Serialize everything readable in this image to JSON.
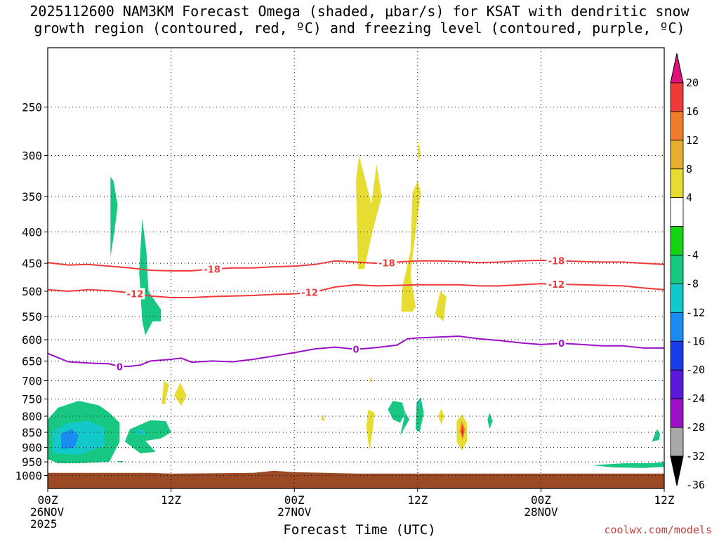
{
  "title": {
    "line1": "2025112600 NAM3KM Forecast Omega (shaded, μbar/s) for KSAT with dendritic snow",
    "line2": "growth region (contoured, red, ºC) and freezing level (contoured, purple, ºC)"
  },
  "credit": "coolwx.com/models",
  "chart_data": {
    "type": "time-height",
    "xlabel": "Forecast Time (UTC)",
    "ylabel": "",
    "x_hours_range": [
      0,
      60
    ],
    "y_scale": "log-pressure",
    "y_range_hPa": [
      1050,
      200
    ],
    "y_ticks": [
      250,
      300,
      350,
      400,
      450,
      500,
      550,
      600,
      650,
      700,
      750,
      800,
      850,
      900,
      950,
      1000
    ],
    "x_ticks": [
      {
        "hour": 0,
        "lines": [
          "00Z",
          "26NOV",
          "2025"
        ]
      },
      {
        "hour": 12,
        "lines": [
          "12Z"
        ]
      },
      {
        "hour": 24,
        "lines": [
          "00Z",
          "27NOV"
        ]
      },
      {
        "hour": 36,
        "lines": [
          "12Z"
        ]
      },
      {
        "hour": 48,
        "lines": [
          "00Z",
          "28NOV"
        ]
      },
      {
        "hour": 60,
        "lines": [
          "12Z"
        ]
      }
    ],
    "grid": true,
    "colorbar": {
      "unit": "μbar/s",
      "labels": [
        20,
        16,
        12,
        8,
        4,
        -4,
        -8,
        -12,
        -16,
        -20,
        -24,
        -28,
        -32,
        -36
      ],
      "bins": [
        {
          "lo": 20,
          "hi": null,
          "color": "#e0107a"
        },
        {
          "lo": 16,
          "hi": 20,
          "color": "#ef3a3a"
        },
        {
          "lo": 12,
          "hi": 16,
          "color": "#f07c2c"
        },
        {
          "lo": 8,
          "hi": 12,
          "color": "#e8ae30"
        },
        {
          "lo": 4,
          "hi": 8,
          "color": "#e6dc32"
        },
        {
          "lo": -4,
          "hi": 4,
          "color": "#ffffff"
        },
        {
          "lo": -8,
          "hi": -4,
          "color": "#14d414"
        },
        {
          "lo": -12,
          "hi": -8,
          "color": "#18c882"
        },
        {
          "lo": -16,
          "hi": -12,
          "color": "#12c8c8"
        },
        {
          "lo": -20,
          "hi": -16,
          "color": "#1a8cf0"
        },
        {
          "lo": -24,
          "hi": -20,
          "color": "#1a3ce6"
        },
        {
          "lo": -28,
          "hi": -24,
          "color": "#5a18d8"
        },
        {
          "lo": -32,
          "hi": -28,
          "color": "#9c10c8"
        },
        {
          "lo": -36,
          "hi": -32,
          "color": "#a8a8a8"
        },
        {
          "lo": null,
          "hi": -36,
          "color": "#000000"
        }
      ]
    },
    "contours": [
      {
        "level": -18,
        "label": "-18",
        "color": "#ee3a3a",
        "points": [
          [
            0,
            449
          ],
          [
            2,
            453
          ],
          [
            4,
            452
          ],
          [
            6,
            455
          ],
          [
            8,
            458
          ],
          [
            10,
            462
          ],
          [
            12,
            463
          ],
          [
            14,
            463
          ],
          [
            16,
            460
          ],
          [
            18,
            458
          ],
          [
            20,
            458
          ],
          [
            22,
            456
          ],
          [
            24,
            455
          ],
          [
            26,
            452
          ],
          [
            28,
            446
          ],
          [
            30,
            448
          ],
          [
            32,
            450
          ],
          [
            34,
            448
          ],
          [
            36,
            446
          ],
          [
            38,
            446
          ],
          [
            40,
            447
          ],
          [
            42,
            449
          ],
          [
            44,
            448
          ],
          [
            46,
            446
          ],
          [
            48,
            445
          ],
          [
            50,
            446
          ],
          [
            52,
            447
          ],
          [
            54,
            448
          ],
          [
            56,
            448
          ],
          [
            58,
            450
          ],
          [
            60,
            452
          ]
        ],
        "label_hours": [
          16,
          33,
          49.5
        ]
      },
      {
        "level": -12,
        "label": "-12",
        "color": "#ee3a3a",
        "points": [
          [
            0,
            497
          ],
          [
            2,
            500
          ],
          [
            4,
            497
          ],
          [
            6,
            499
          ],
          [
            8,
            503
          ],
          [
            10,
            509
          ],
          [
            12,
            512
          ],
          [
            14,
            512
          ],
          [
            16,
            510
          ],
          [
            18,
            509
          ],
          [
            20,
            508
          ],
          [
            22,
            506
          ],
          [
            24,
            505
          ],
          [
            26,
            501
          ],
          [
            28,
            492
          ],
          [
            30,
            488
          ],
          [
            32,
            490
          ],
          [
            34,
            489
          ],
          [
            36,
            488
          ],
          [
            38,
            488
          ],
          [
            40,
            488
          ],
          [
            42,
            490
          ],
          [
            44,
            490
          ],
          [
            46,
            488
          ],
          [
            48,
            486
          ],
          [
            50,
            487
          ],
          [
            52,
            488
          ],
          [
            54,
            489
          ],
          [
            56,
            490
          ],
          [
            58,
            494
          ],
          [
            60,
            497
          ]
        ],
        "label_hours": [
          8.5,
          25.5,
          49.5
        ]
      },
      {
        "level": 0,
        "label": "0",
        "color": "#9c10c8",
        "points": [
          [
            0,
            632
          ],
          [
            2,
            652
          ],
          [
            4,
            655
          ],
          [
            6,
            657
          ],
          [
            7,
            664
          ],
          [
            8,
            663
          ],
          [
            9,
            660
          ],
          [
            10,
            650
          ],
          [
            12,
            646
          ],
          [
            13,
            643
          ],
          [
            14,
            653
          ],
          [
            16,
            650
          ],
          [
            18,
            652
          ],
          [
            20,
            646
          ],
          [
            22,
            638
          ],
          [
            24,
            630
          ],
          [
            26,
            621
          ],
          [
            28,
            617
          ],
          [
            30,
            622
          ],
          [
            32,
            618
          ],
          [
            34,
            612
          ],
          [
            35,
            598
          ],
          [
            36,
            596
          ],
          [
            38,
            594
          ],
          [
            40,
            592
          ],
          [
            42,
            598
          ],
          [
            44,
            602
          ],
          [
            46,
            607
          ],
          [
            48,
            611
          ],
          [
            50,
            608
          ],
          [
            52,
            611
          ],
          [
            54,
            614
          ],
          [
            56,
            614
          ],
          [
            58,
            619
          ],
          [
            60,
            619
          ]
        ],
        "label_hours": [
          7,
          30,
          50
        ]
      }
    ],
    "omega_regions": [
      {
        "bin": -8,
        "pts": [
          [
            0,
            940
          ],
          [
            0,
            810
          ],
          [
            1,
            775
          ],
          [
            3,
            755
          ],
          [
            5,
            768
          ],
          [
            6,
            790
          ],
          [
            7,
            820
          ],
          [
            7,
            880
          ],
          [
            6,
            950
          ],
          [
            3,
            955
          ],
          [
            1,
            955
          ]
        ]
      },
      {
        "bin": -12,
        "pts": [
          [
            0.5,
            920
          ],
          [
            0.5,
            845
          ],
          [
            2,
            820
          ],
          [
            4,
            815
          ],
          [
            5.5,
            835
          ],
          [
            5.5,
            895
          ],
          [
            3,
            925
          ]
        ]
      },
      {
        "bin": -16,
        "pts": [
          [
            1.3,
            905
          ],
          [
            1.3,
            855
          ],
          [
            2.3,
            840
          ],
          [
            3,
            860
          ],
          [
            2.6,
            900
          ]
        ]
      },
      {
        "bin": -8,
        "pts": [
          [
            7.5,
            880
          ],
          [
            8,
            840
          ],
          [
            10,
            812
          ],
          [
            11.5,
            815
          ],
          [
            12,
            850
          ],
          [
            11,
            870
          ],
          [
            9.5,
            878
          ],
          [
            10.5,
            915
          ],
          [
            9,
            920
          ]
        ]
      },
      {
        "bin": -12,
        "pts": [
          [
            8.5,
            855
          ],
          [
            8.8,
            840
          ],
          [
            9.5,
            845
          ],
          [
            9.5,
            857
          ]
        ]
      },
      {
        "bin": -8,
        "pts": [
          [
            6.1,
            440
          ],
          [
            6.1,
            325
          ],
          [
            6.4,
            330
          ],
          [
            6.8,
            362
          ],
          [
            6.5,
            398
          ]
        ]
      },
      {
        "bin": -8,
        "pts": [
          [
            8.9,
            465
          ],
          [
            9.2,
            380
          ],
          [
            9.6,
            430
          ],
          [
            9.8,
            500
          ],
          [
            11,
            535
          ],
          [
            11,
            560
          ],
          [
            10.2,
            560
          ],
          [
            9.5,
            590
          ],
          [
            9.2,
            560
          ]
        ]
      },
      {
        "bin": 4,
        "pts": [
          [
            11.1,
            765
          ],
          [
            11.3,
            700
          ],
          [
            11.8,
            710
          ],
          [
            11.4,
            765
          ]
        ]
      },
      {
        "bin": 4,
        "pts": [
          [
            12.3,
            740
          ],
          [
            12.9,
            705
          ],
          [
            13.5,
            740
          ],
          [
            13,
            770
          ]
        ]
      },
      {
        "bin": 4,
        "pts": [
          [
            30.2,
            460
          ],
          [
            30,
            330
          ],
          [
            30.3,
            300
          ],
          [
            31.5,
            360
          ],
          [
            32,
            310
          ],
          [
            32.5,
            350
          ],
          [
            31.6,
            400
          ],
          [
            30.8,
            460
          ]
        ]
      },
      {
        "bin": 4,
        "pts": [
          [
            34.4,
            540
          ],
          [
            34.5,
            495
          ],
          [
            35.3,
            430
          ],
          [
            35.5,
            345
          ],
          [
            36,
            330
          ],
          [
            36.3,
            345
          ],
          [
            35.8,
            400
          ],
          [
            35.3,
            470
          ],
          [
            35.8,
            530
          ],
          [
            35.5,
            540
          ]
        ]
      },
      {
        "bin": 4,
        "pts": [
          [
            36,
            298
          ],
          [
            36.1,
            285
          ],
          [
            36.3,
            298
          ],
          [
            36.1,
            305
          ]
        ]
      },
      {
        "bin": 4,
        "pts": [
          [
            37.7,
            545
          ],
          [
            38.2,
            500
          ],
          [
            38.8,
            510
          ],
          [
            38.5,
            560
          ]
        ]
      },
      {
        "bin": 4,
        "pts": [
          [
            31,
            830
          ],
          [
            31.2,
            780
          ],
          [
            31.8,
            790
          ],
          [
            31.6,
            850
          ],
          [
            31.3,
            910
          ]
        ]
      },
      {
        "bin": 4,
        "pts": [
          [
            31.3,
            700
          ],
          [
            31.5,
            690
          ],
          [
            31.6,
            705
          ]
        ]
      },
      {
        "bin": 4,
        "pts": [
          [
            26.6,
            810
          ],
          [
            26.8,
            795
          ],
          [
            27,
            815
          ]
        ]
      },
      {
        "bin": -8,
        "pts": [
          [
            33.1,
            780
          ],
          [
            33.6,
            755
          ],
          [
            34.5,
            760
          ],
          [
            34.8,
            790
          ],
          [
            34.3,
            820
          ],
          [
            33.6,
            810
          ]
        ]
      },
      {
        "bin": -8,
        "pts": [
          [
            34.3,
            860
          ],
          [
            34.8,
            790
          ],
          [
            35.2,
            810
          ]
        ]
      },
      {
        "bin": -8,
        "pts": [
          [
            35.8,
            840
          ],
          [
            35.9,
            760
          ],
          [
            36.3,
            745
          ],
          [
            36.6,
            790
          ],
          [
            36.2,
            850
          ]
        ]
      },
      {
        "bin": -12,
        "pts": [
          [
            34.5,
            800
          ],
          [
            34.7,
            790
          ],
          [
            34.8,
            810
          ]
        ]
      },
      {
        "bin": -12,
        "pts": [
          [
            35.9,
            770
          ],
          [
            36.1,
            760
          ],
          [
            36.3,
            775
          ]
        ]
      },
      {
        "bin": 4,
        "pts": [
          [
            38,
            800
          ],
          [
            38.3,
            778
          ],
          [
            38.6,
            800
          ],
          [
            38.3,
            825
          ]
        ]
      },
      {
        "bin": 4,
        "pts": [
          [
            39.8,
            815
          ],
          [
            40.3,
            795
          ],
          [
            40.8,
            820
          ],
          [
            40.8,
            880
          ],
          [
            40.3,
            910
          ],
          [
            39.8,
            880
          ]
        ]
      },
      {
        "bin": 12,
        "pts": [
          [
            40.1,
            845
          ],
          [
            40.3,
            815
          ],
          [
            40.6,
            840
          ],
          [
            40.4,
            875
          ]
        ]
      },
      {
        "bin": 16,
        "pts": [
          [
            40.25,
            845
          ],
          [
            40.4,
            825
          ],
          [
            40.5,
            850
          ],
          [
            40.35,
            865
          ]
        ]
      },
      {
        "bin": -8,
        "pts": [
          [
            42.8,
            810
          ],
          [
            43,
            790
          ],
          [
            43.3,
            815
          ],
          [
            43,
            840
          ]
        ]
      },
      {
        "bin": -8,
        "pts": [
          [
            58.8,
            880
          ],
          [
            59.3,
            840
          ],
          [
            59.6,
            855
          ],
          [
            59.5,
            875
          ]
        ]
      },
      {
        "bin": -8,
        "pts": [
          [
            53,
            962
          ],
          [
            56,
            955
          ],
          [
            59,
            954
          ],
          [
            60,
            950
          ],
          [
            60,
            968
          ],
          [
            58,
            972
          ],
          [
            55,
            970
          ]
        ]
      },
      {
        "bin": -8,
        "pts": [
          [
            6.7,
            948
          ],
          [
            7.4,
            947
          ],
          [
            7.2,
            953
          ]
        ]
      }
    ],
    "terrain": {
      "color": "#9b4a24",
      "top_hPa": 985,
      "bottom_hPa": 1050
    }
  }
}
